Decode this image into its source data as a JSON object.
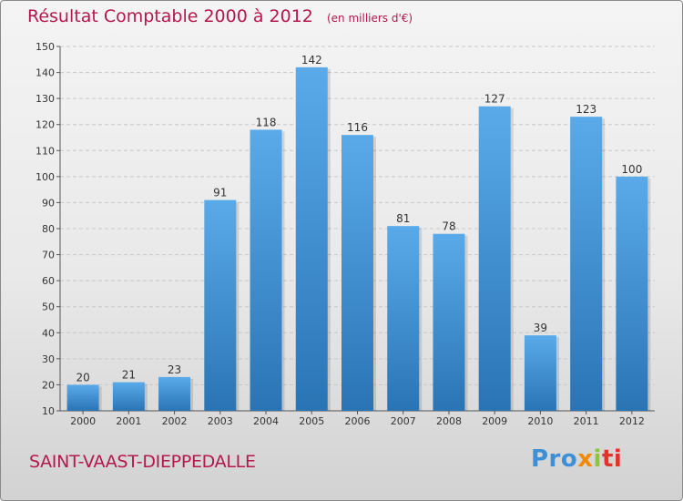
{
  "header": {
    "title": "Résultat Comptable 2000 à 2012",
    "subtitle": "(en milliers d'€)"
  },
  "footer": {
    "town": "SAINT-VAAST-DIEPPEDALLE",
    "logo_parts": [
      "Pro",
      "x",
      "i",
      "ti"
    ]
  },
  "colors": {
    "accent": "#b5184f",
    "bar_top": "#5aaaea",
    "bar_bottom": "#2a74b4"
  },
  "chart_data": {
    "type": "bar",
    "categories": [
      "2000",
      "2001",
      "2002",
      "2003",
      "2004",
      "2005",
      "2006",
      "2007",
      "2008",
      "2009",
      "2010",
      "2011",
      "2012"
    ],
    "values": [
      20,
      21,
      23,
      91,
      118,
      142,
      116,
      81,
      78,
      127,
      39,
      123,
      100
    ],
    "title": "Résultat Comptable 2000 à 2012",
    "subtitle": "(en milliers d'€)",
    "xlabel": "",
    "ylabel": "",
    "ylim": [
      10,
      150
    ],
    "yticks": [
      10,
      20,
      30,
      40,
      50,
      60,
      70,
      80,
      90,
      100,
      110,
      120,
      130,
      140,
      150
    ],
    "grid": true,
    "legend": "none"
  }
}
